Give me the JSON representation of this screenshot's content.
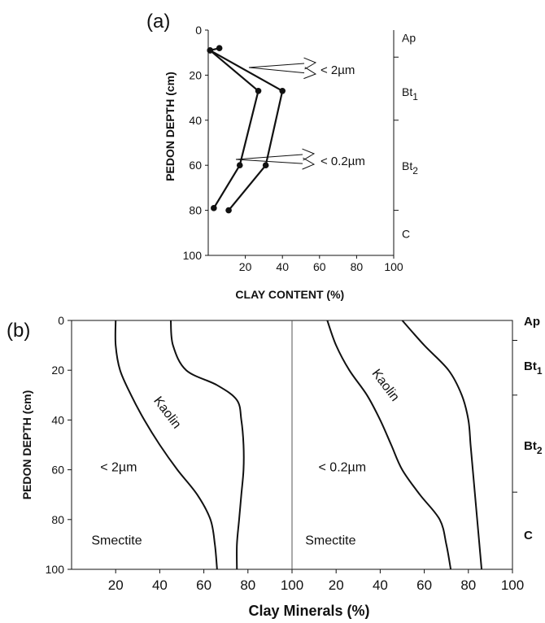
{
  "chart_data": [
    {
      "panel": "(a)",
      "type": "line",
      "xlabel": "CLAY CONTENT (%)",
      "ylabel": "PEDON DEPTH (cm)",
      "xlim": [
        0,
        100
      ],
      "ylim": [
        0,
        100
      ],
      "y_inverted": true,
      "x_ticks": [
        "20",
        "40",
        "60",
        "80",
        "100"
      ],
      "y_ticks": [
        "0",
        "20",
        "40",
        "60",
        "80",
        "100"
      ],
      "series": [
        {
          "name": "< 2µm",
          "points": [
            [
              6,
              8
            ],
            [
              1,
              9
            ],
            [
              40,
              27
            ],
            [
              31,
              60
            ],
            [
              11,
              80
            ]
          ]
        },
        {
          "name": "< 0.2µm",
          "points": [
            [
              1,
              9
            ],
            [
              27,
              27
            ],
            [
              17,
              60
            ],
            [
              3,
              79
            ]
          ]
        }
      ],
      "horizons": [
        {
          "label": "Ap",
          "base": "Ap",
          "sub": ""
        },
        {
          "label": "Bt1",
          "base": "Bt",
          "sub": "1"
        },
        {
          "label": "Bt2",
          "base": "Bt",
          "sub": "2"
        },
        {
          "label": "C",
          "base": "C",
          "sub": ""
        }
      ],
      "horizon_boundaries": [
        12,
        40,
        80
      ]
    },
    {
      "panel": "(b)",
      "type": "line",
      "xlabel": "Clay Minerals (%)",
      "ylabel": "PEDON DEPTH (cm)",
      "xlim": [
        0,
        200
      ],
      "ylim": [
        0,
        100
      ],
      "y_inverted": true,
      "x_ticks": [
        "20",
        "40",
        "60",
        "80",
        "100",
        "20",
        "40",
        "60",
        "80",
        "100"
      ],
      "y_ticks": [
        "0",
        "20",
        "40",
        "60",
        "80",
        "100"
      ],
      "subplots": [
        {
          "label": "< 2µm",
          "smectite_label": "Smectite",
          "kaolin_label": "Kaolin",
          "boundaries": [
            {
              "points": [
                [
                  20,
                  0
                ],
                [
                  20,
                  10
                ],
                [
                  22,
                  20
                ],
                [
                  27,
                  30
                ],
                [
                  33,
                  40
                ],
                [
                  40,
                  50
                ],
                [
                  48,
                  60
                ],
                [
                  57,
                  70
                ],
                [
                  63,
                  80
                ],
                [
                  65,
                  90
                ],
                [
                  66,
                  100
                ]
              ]
            },
            {
              "points": [
                [
                  45,
                  0
                ],
                [
                  46,
                  10
                ],
                [
                  52,
                  20
                ],
                [
                  66,
                  26
                ],
                [
                  75,
                  32
                ],
                [
                  77,
                  40
                ],
                [
                  78,
                  50
                ],
                [
                  78,
                  60
                ],
                [
                  77,
                  70
                ],
                [
                  76,
                  80
                ],
                [
                  75,
                  90
                ],
                [
                  75,
                  100
                ]
              ]
            }
          ]
        },
        {
          "label": "< 0.2µm",
          "smectite_label": "Smectite",
          "kaolin_label": "Kaolin",
          "boundaries": [
            {
              "points": [
                [
                  16,
                  0
                ],
                [
                  20,
                  10
                ],
                [
                  26,
                  20
                ],
                [
                  34,
                  30
                ],
                [
                  40,
                  40
                ],
                [
                  45,
                  50
                ],
                [
                  50,
                  60
                ],
                [
                  58,
                  70
                ],
                [
                  67,
                  80
                ],
                [
                  70,
                  90
                ],
                [
                  72,
                  100
                ]
              ]
            },
            {
              "points": [
                [
                  50,
                  0
                ],
                [
                  60,
                  10
                ],
                [
                  71,
                  20
                ],
                [
                  77,
                  30
                ],
                [
                  80,
                  40
                ],
                [
                  81,
                  50
                ],
                [
                  82,
                  60
                ],
                [
                  83,
                  70
                ],
                [
                  84,
                  80
                ],
                [
                  85,
                  90
                ],
                [
                  86,
                  100
                ]
              ]
            }
          ]
        }
      ],
      "horizons": [
        {
          "label": "Ap",
          "base": "Ap",
          "sub": ""
        },
        {
          "label": "Bt1",
          "base": "Bt",
          "sub": "1"
        },
        {
          "label": "Bt2",
          "base": "Bt",
          "sub": "2"
        },
        {
          "label": "C",
          "base": "C",
          "sub": ""
        }
      ],
      "horizon_boundaries": [
        8,
        30,
        69
      ]
    }
  ]
}
